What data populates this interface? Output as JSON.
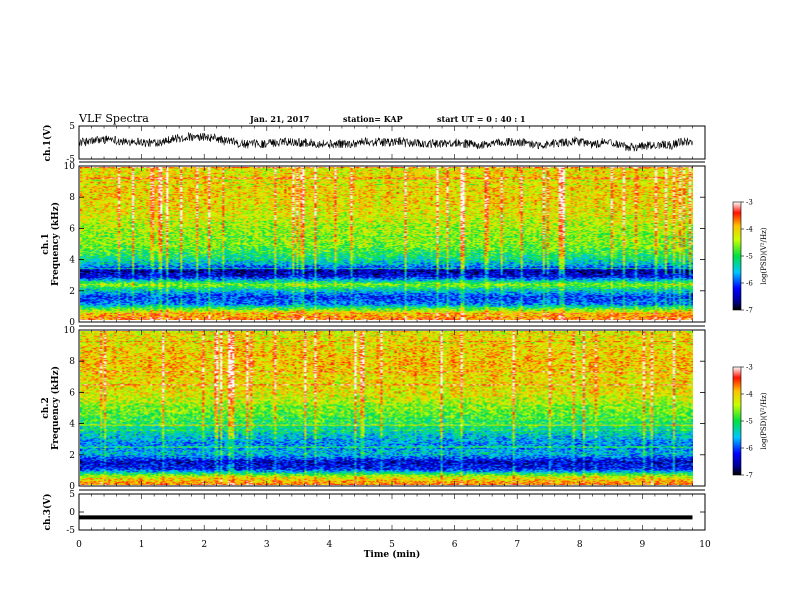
{
  "header": {
    "title": "VLF Spectra",
    "date": "Jan. 21, 2017",
    "station": "station= KAP",
    "start_ut": "start  UT =   0 : 40 : 1"
  },
  "chart_data": [
    {
      "type": "line",
      "panel": "ch1-waveform",
      "ylabel": "ch.1(V)",
      "ylim": [
        -5,
        5
      ],
      "yticks": [
        "5",
        "-5"
      ],
      "xlim": [
        0,
        10
      ],
      "description_values": "noisy waveform between about -2 and 2 V over 0–9.8 min"
    },
    {
      "type": "heatmap",
      "panel": "ch1-spectrogram",
      "ylabel": "ch.1",
      "ylabel2": "Frequency (kHz)",
      "ylim": [
        0,
        10
      ],
      "yticks": [
        "0",
        "2",
        "4",
        "6",
        "8",
        "10"
      ],
      "xlim": [
        0,
        10
      ],
      "data_extent_min": 9.8,
      "colorbar": {
        "label": "log(PSD)(V²/Hz)",
        "min": -7,
        "max": -3,
        "ticks": [
          "-3",
          "-4",
          "-5",
          "-6",
          "-7"
        ]
      },
      "freq_profile_kHz_level": [
        [
          0,
          -3.6
        ],
        [
          0.5,
          -4.2
        ],
        [
          1.0,
          -5.8
        ],
        [
          1.5,
          -6.1
        ],
        [
          2.0,
          -5.3
        ],
        [
          2.3,
          -4.6
        ],
        [
          2.8,
          -6.3
        ],
        [
          3.2,
          -6.6
        ],
        [
          3.6,
          -5.6
        ],
        [
          4.0,
          -5.2
        ],
        [
          5.0,
          -4.6
        ],
        [
          6.0,
          -4.5
        ],
        [
          7.0,
          -4.2
        ],
        [
          8.0,
          -4.1
        ],
        [
          9.0,
          -4.1
        ],
        [
          10.0,
          -4.2
        ]
      ]
    },
    {
      "type": "heatmap",
      "panel": "ch2-spectrogram",
      "ylabel": "ch.2",
      "ylabel2": "Frequency (kHz)",
      "ylim": [
        0,
        10
      ],
      "yticks": [
        "0",
        "2",
        "4",
        "6",
        "8",
        "10"
      ],
      "xlim": [
        0,
        10
      ],
      "data_extent_min": 9.8,
      "colorbar": {
        "label": "log(PSD)(V²/Hz)",
        "min": -7,
        "max": -3,
        "ticks": [
          "-3",
          "-4",
          "-5",
          "-6",
          "-7"
        ]
      },
      "freq_profile_kHz_level": [
        [
          0,
          -3.7
        ],
        [
          0.5,
          -4.3
        ],
        [
          1.0,
          -6.2
        ],
        [
          1.5,
          -6.4
        ],
        [
          2.0,
          -5.5
        ],
        [
          2.5,
          -5.8
        ],
        [
          3.0,
          -5.6
        ],
        [
          3.5,
          -5.3
        ],
        [
          4.0,
          -5.0
        ],
        [
          5.0,
          -4.6
        ],
        [
          6.0,
          -4.2
        ],
        [
          7.0,
          -4.1
        ],
        [
          8.0,
          -4.0
        ],
        [
          9.0,
          -4.1
        ],
        [
          10.0,
          -4.2
        ]
      ]
    },
    {
      "type": "line",
      "panel": "ch3-waveform",
      "ylabel": "ch.3(V)",
      "ylim": [
        -5,
        5
      ],
      "yticks": [
        "5",
        "0",
        "-5"
      ],
      "xlim": [
        0,
        10
      ],
      "xlabel": "Time  (min)",
      "xticks": [
        "0",
        "1",
        "2",
        "3",
        "4",
        "5",
        "6",
        "7",
        "8",
        "9",
        "10"
      ],
      "values_constant": -1.5
    }
  ]
}
